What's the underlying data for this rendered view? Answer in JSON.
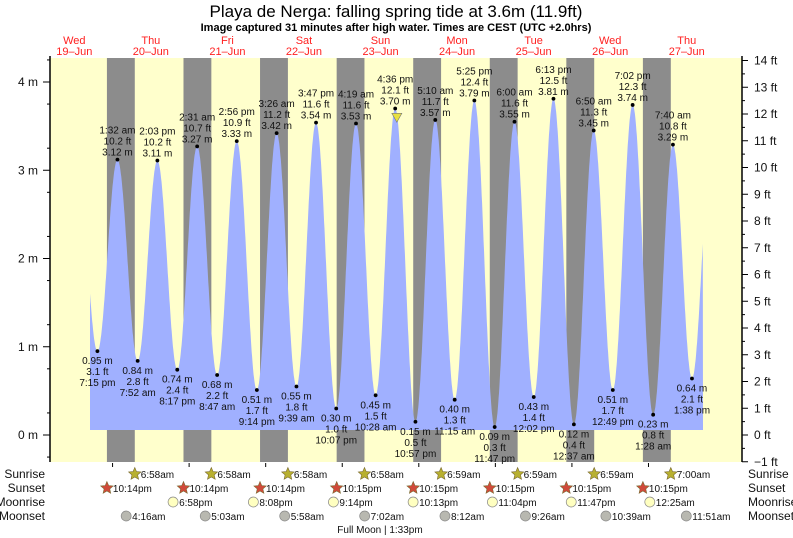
{
  "chart_data": {
    "type": "area",
    "title": "Playa de Nerga: falling  spring tide at 3.6m (11.9ft)",
    "subtitle": "Image captured 31 minutes after high water. Times are CEST (UTC +2.0hrs)",
    "days": [
      {
        "name": "Wed",
        "date": "19–Jun"
      },
      {
        "name": "Thu",
        "date": "20–Jun"
      },
      {
        "name": "Fri",
        "date": "21–Jun"
      },
      {
        "name": "Sat",
        "date": "22–Jun"
      },
      {
        "name": "Sun",
        "date": "23–Jun"
      },
      {
        "name": "Mon",
        "date": "24–Jun"
      },
      {
        "name": "Tue",
        "date": "25–Jun"
      },
      {
        "name": "Wed",
        "date": "26–Jun"
      },
      {
        "name": "Thu",
        "date": "27–Jun"
      }
    ],
    "left_axis": {
      "unit": "m",
      "ticks": [
        "0 m",
        "1 m",
        "2 m",
        "3 m",
        "4 m"
      ],
      "values": [
        0,
        1,
        2,
        3,
        4
      ]
    },
    "right_axis": {
      "unit": "ft",
      "ticks": [
        "−1 ft",
        "0 ft",
        "1 ft",
        "2 ft",
        "3 ft",
        "4 ft",
        "5 ft",
        "6 ft",
        "7 ft",
        "8 ft",
        "9 ft",
        "10 ft",
        "11 ft",
        "12 ft",
        "13 ft",
        "14 ft"
      ],
      "values": [
        -1,
        0,
        1,
        2,
        3,
        4,
        5,
        6,
        7,
        8,
        9,
        10,
        11,
        12,
        13,
        14
      ]
    },
    "current": {
      "day": 4,
      "time": "5:07 pm",
      "m": 3.6
    },
    "tides": [
      {
        "type": "low",
        "day": 0,
        "time": "7:15 pm",
        "ft": "3.1 ft",
        "m": 0.95
      },
      {
        "type": "high",
        "day": 1,
        "time": "1:32 am",
        "ft": "10.2 ft",
        "m": 3.12
      },
      {
        "type": "low",
        "day": 1,
        "time": "7:52 am",
        "ft": "2.8 ft",
        "m": 0.84
      },
      {
        "type": "high",
        "day": 1,
        "time": "2:03 pm",
        "ft": "10.2 ft",
        "m": 3.11
      },
      {
        "type": "low",
        "day": 1,
        "time": "8:17 pm",
        "ft": "2.4 ft",
        "m": 0.74
      },
      {
        "type": "high",
        "day": 2,
        "time": "2:31 am",
        "ft": "10.7 ft",
        "m": 3.27
      },
      {
        "type": "low",
        "day": 2,
        "time": "8:47 am",
        "ft": "2.2 ft",
        "m": 0.68
      },
      {
        "type": "high",
        "day": 2,
        "time": "2:56 pm",
        "ft": "10.9 ft",
        "m": 3.33
      },
      {
        "type": "low",
        "day": 2,
        "time": "9:14 pm",
        "ft": "1.7 ft",
        "m": 0.51
      },
      {
        "type": "high",
        "day": 3,
        "time": "3:26 am",
        "ft": "11.2 ft",
        "m": 3.42
      },
      {
        "type": "low",
        "day": 3,
        "time": "9:39 am",
        "ft": "1.8 ft",
        "m": 0.55
      },
      {
        "type": "high",
        "day": 3,
        "time": "3:47 pm",
        "ft": "11.6 ft",
        "m": 3.54
      },
      {
        "type": "low",
        "day": 3,
        "time": "10:07 pm",
        "ft": "1.0 ft",
        "m": 0.3
      },
      {
        "type": "high",
        "day": 4,
        "time": "4:19 am",
        "ft": "11.6 ft",
        "m": 3.53
      },
      {
        "type": "low",
        "day": 4,
        "time": "10:28 am",
        "ft": "1.5 ft",
        "m": 0.45
      },
      {
        "type": "high",
        "day": 4,
        "time": "4:36 pm",
        "ft": "12.1 ft",
        "m": 3.7
      },
      {
        "type": "low",
        "day": 4,
        "time": "10:57 pm",
        "ft": "0.5 ft",
        "m": 0.15
      },
      {
        "type": "high",
        "day": 5,
        "time": "5:10 am",
        "ft": "11.7 ft",
        "m": 3.57
      },
      {
        "type": "low",
        "day": 5,
        "time": "11:15 am",
        "ft": "1.3 ft",
        "m": 0.4
      },
      {
        "type": "high",
        "day": 5,
        "time": "5:25 pm",
        "ft": "12.4 ft",
        "m": 3.79
      },
      {
        "type": "low",
        "day": 5,
        "time": "11:47 pm",
        "ft": "0.3 ft",
        "m": 0.09
      },
      {
        "type": "high",
        "day": 6,
        "time": "6:00 am",
        "ft": "11.6 ft",
        "m": 3.55
      },
      {
        "type": "low",
        "day": 6,
        "time": "12:02 pm",
        "ft": "1.4 ft",
        "m": 0.43
      },
      {
        "type": "high",
        "day": 6,
        "time": "6:13 pm",
        "ft": "12.5 ft",
        "m": 3.81
      },
      {
        "type": "low",
        "day": 7,
        "time": "12:37 am",
        "ft": "0.4 ft",
        "m": 0.12
      },
      {
        "type": "high",
        "day": 7,
        "time": "6:50 am",
        "ft": "11.3 ft",
        "m": 3.45
      },
      {
        "type": "low",
        "day": 7,
        "time": "12:49 pm",
        "ft": "1.7 ft",
        "m": 0.51
      },
      {
        "type": "high",
        "day": 7,
        "time": "7:02 pm",
        "ft": "12.3 ft",
        "m": 3.74
      },
      {
        "type": "low",
        "day": 8,
        "time": "1:28 am",
        "ft": "0.8 ft",
        "m": 0.23
      },
      {
        "type": "high",
        "day": 8,
        "time": "7:40 am",
        "ft": "10.8 ft",
        "m": 3.29
      },
      {
        "type": "low",
        "day": 8,
        "time": "1:38 pm",
        "ft": "2.1 ft",
        "m": 0.64
      }
    ],
    "rows": {
      "sunrise": {
        "label": "Sunrise",
        "color": "#b8b030",
        "events": [
          {
            "day": 1,
            "time": "6:58am"
          },
          {
            "day": 2,
            "time": "6:58am"
          },
          {
            "day": 3,
            "time": "6:58am"
          },
          {
            "day": 4,
            "time": "6:58am"
          },
          {
            "day": 5,
            "time": "6:59am"
          },
          {
            "day": 6,
            "time": "6:59am"
          },
          {
            "day": 7,
            "time": "6:59am"
          },
          {
            "day": 8,
            "time": "7:00am"
          }
        ]
      },
      "sunset": {
        "label": "Sunset",
        "color": "#d04a3a",
        "events": [
          {
            "day": 0,
            "time": "10:14pm"
          },
          {
            "day": 1,
            "time": "10:14pm"
          },
          {
            "day": 2,
            "time": "10:14pm"
          },
          {
            "day": 3,
            "time": "10:15pm"
          },
          {
            "day": 4,
            "time": "10:15pm"
          },
          {
            "day": 5,
            "time": "10:15pm"
          },
          {
            "day": 6,
            "time": "10:15pm"
          },
          {
            "day": 7,
            "time": "10:15pm"
          }
        ]
      },
      "moonrise": {
        "label": "Moonrise",
        "color": "#ffffc0",
        "events": [
          {
            "day": 1,
            "time": "6:58pm"
          },
          {
            "day": 2,
            "time": "8:08pm"
          },
          {
            "day": 3,
            "time": "9:14pm"
          },
          {
            "day": 4,
            "time": "10:13pm"
          },
          {
            "day": 5,
            "time": "11:04pm"
          },
          {
            "day": 6,
            "time": "11:47pm"
          },
          {
            "day": 8,
            "time": "12:25am"
          }
        ]
      },
      "moonset": {
        "label": "Moonset",
        "color": "#b8b8b0",
        "events": [
          {
            "day": 1,
            "time": "4:16am"
          },
          {
            "day": 2,
            "time": "5:03am"
          },
          {
            "day": 3,
            "time": "5:58am"
          },
          {
            "day": 4,
            "time": "7:02am"
          },
          {
            "day": 5,
            "time": "8:12am"
          },
          {
            "day": 6,
            "time": "9:26am"
          },
          {
            "day": 7,
            "time": "10:39am"
          },
          {
            "day": 8,
            "time": "11:51am"
          }
        ]
      }
    },
    "moon_phase": "Full Moon | 1:33pm",
    "colors": {
      "day": "#ffffcc",
      "night": "#8c8c8c",
      "water": "#a0b0ff",
      "marker": "#e8e040"
    }
  }
}
